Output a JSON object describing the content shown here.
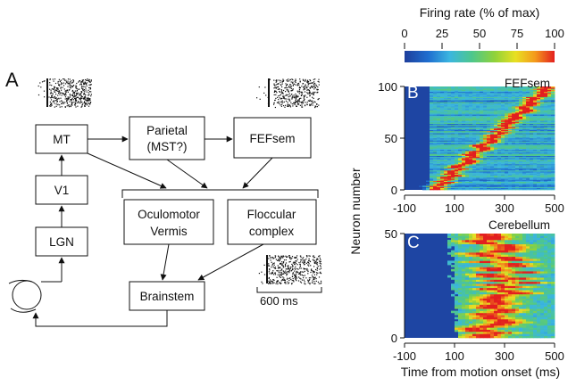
{
  "panel_a": {
    "letter": "A",
    "boxes": {
      "mt": "MT",
      "v1": "V1",
      "lgn": "LGN",
      "parietal_line1": "Parietal",
      "parietal_line2": "(MST?)",
      "fefsem": "FEFsem",
      "vermis_line1": "Oculomotor",
      "vermis_line2": "Vermis",
      "floccular_line1": "Floccular",
      "floccular_line2": "complex",
      "brainstem": "Brainstem"
    },
    "scale_bar": "600 ms"
  },
  "colorbar": {
    "title": "Firing rate (% of max)",
    "ticks": [
      "0",
      "25",
      "50",
      "75",
      "100"
    ],
    "colormap": [
      "#1e3e9c",
      "#1f6fd0",
      "#3bb6e0",
      "#4ec78c",
      "#8fd23a",
      "#e8e022",
      "#f49a1c",
      "#e31f1f"
    ]
  },
  "panel_b": {
    "letter": "B",
    "title": "FEFsem",
    "y_ticks": [
      "0",
      "50",
      "100"
    ],
    "x_ticks": [
      "-100",
      "100",
      "300",
      "500"
    ]
  },
  "panel_c": {
    "letter": "C",
    "title": "Cerebellum",
    "y_ticks": [
      "0",
      "50"
    ],
    "x_ticks": [
      "-100",
      "100",
      "300",
      "500"
    ]
  },
  "y_axis_label": "Neuron number",
  "x_axis_label": "Time from motion onset (ms)"
}
